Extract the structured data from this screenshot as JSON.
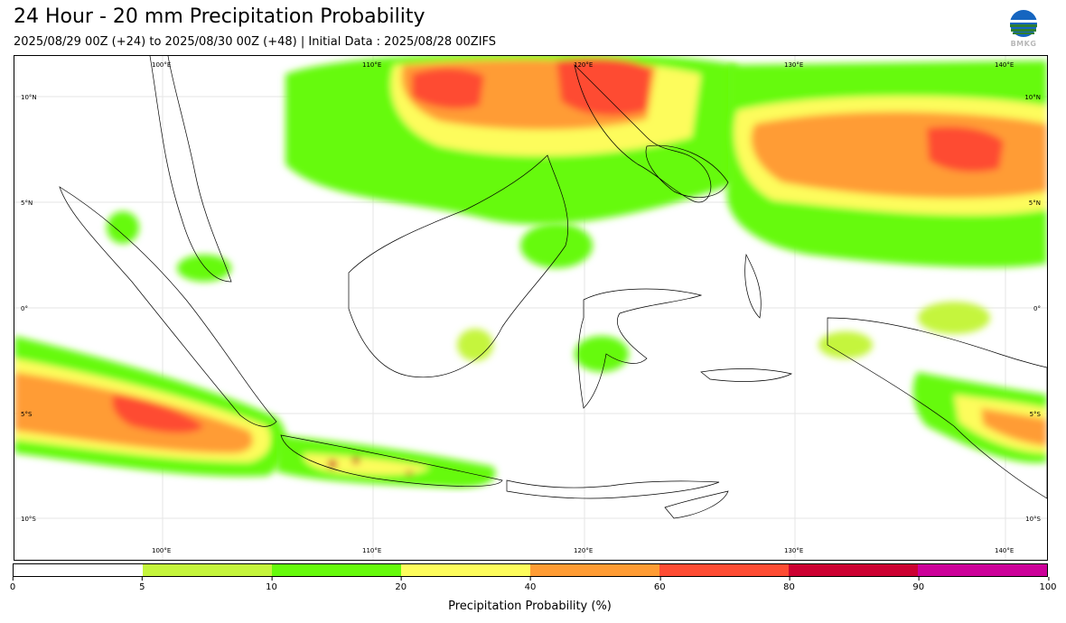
{
  "header": {
    "title": "24 Hour - 20 mm Precipitation Probability",
    "subtitle": "2025/08/29 00Z (+24) to 2025/08/30 00Z (+48) | Initial Data : 2025/08/28 00ZIFS"
  },
  "logo": {
    "text": "BMKG",
    "colors": [
      "#1565c0",
      "#ffffff",
      "#2e7d32"
    ]
  },
  "map": {
    "lon_labels": [
      "100°E",
      "110°E",
      "120°E",
      "130°E",
      "140°E"
    ],
    "lat_labels": [
      "10°N",
      "5°N",
      "0°",
      "5°S",
      "10°S"
    ]
  },
  "colorbar": {
    "colors": [
      "#ffffff",
      "#c5f53c",
      "#66fa0c",
      "#fdfc5c",
      "#ff9c34",
      "#fe4c33",
      "#cc0031",
      "#cc0099"
    ],
    "ticks": [
      "0",
      "5",
      "10",
      "20",
      "40",
      "60",
      "80",
      "90",
      "100"
    ],
    "label": "Precipitation Probability (%)"
  }
}
